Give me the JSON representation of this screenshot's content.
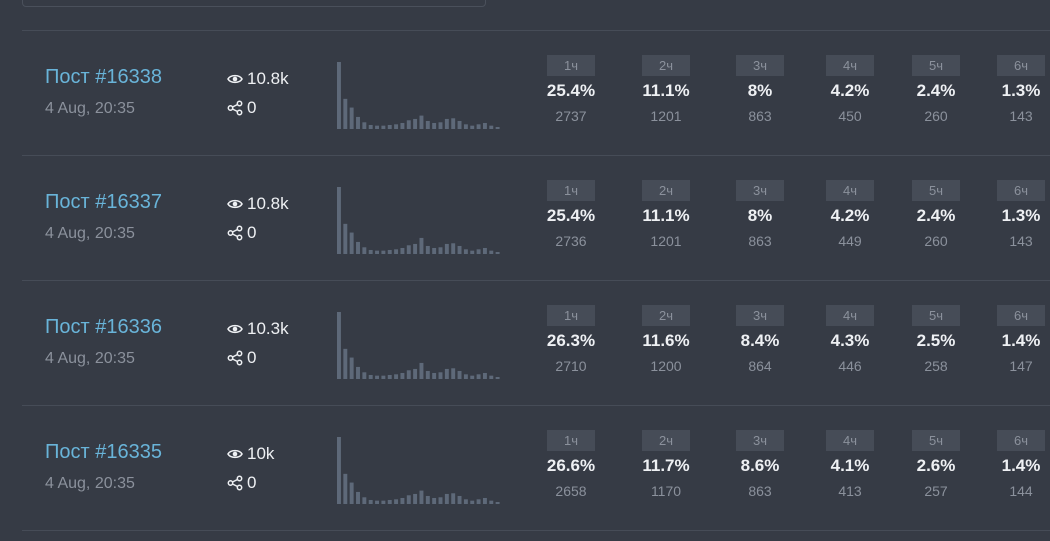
{
  "accent": "#69b4d9",
  "bar_color": "#5e6979",
  "posts": [
    {
      "title": "Пост #16338",
      "date": "4 Aug, 20:35",
      "views": "10.8k",
      "shares": "0",
      "spark": [
        100,
        45,
        32,
        18,
        10,
        6,
        5,
        5,
        6,
        7,
        9,
        13,
        15,
        20,
        12,
        9,
        10,
        15,
        16,
        12,
        7,
        5,
        7,
        9,
        5,
        3
      ],
      "hours": [
        {
          "label": "1ч",
          "pct": "25.4%",
          "count": "2737"
        },
        {
          "label": "2ч",
          "pct": "11.1%",
          "count": "1201"
        },
        {
          "label": "3ч",
          "pct": "8%",
          "count": "863"
        },
        {
          "label": "4ч",
          "pct": "4.2%",
          "count": "450"
        },
        {
          "label": "5ч",
          "pct": "2.4%",
          "count": "260"
        },
        {
          "label": "6ч",
          "pct": "1.3%",
          "count": "143"
        }
      ]
    },
    {
      "title": "Пост #16337",
      "date": "4 Aug, 20:35",
      "views": "10.8k",
      "shares": "0",
      "spark": [
        100,
        45,
        32,
        18,
        10,
        6,
        5,
        5,
        6,
        7,
        9,
        13,
        15,
        24,
        12,
        9,
        10,
        15,
        16,
        12,
        7,
        5,
        7,
        9,
        5,
        3
      ],
      "hours": [
        {
          "label": "1ч",
          "pct": "25.4%",
          "count": "2736"
        },
        {
          "label": "2ч",
          "pct": "11.1%",
          "count": "1201"
        },
        {
          "label": "3ч",
          "pct": "8%",
          "count": "863"
        },
        {
          "label": "4ч",
          "pct": "4.2%",
          "count": "449"
        },
        {
          "label": "5ч",
          "pct": "2.4%",
          "count": "260"
        },
        {
          "label": "6ч",
          "pct": "1.3%",
          "count": "143"
        }
      ]
    },
    {
      "title": "Пост #16336",
      "date": "4 Aug, 20:35",
      "views": "10.3k",
      "shares": "0",
      "spark": [
        100,
        45,
        32,
        18,
        10,
        6,
        5,
        5,
        6,
        7,
        9,
        13,
        15,
        24,
        12,
        9,
        10,
        15,
        16,
        12,
        7,
        5,
        7,
        9,
        5,
        3
      ],
      "hours": [
        {
          "label": "1ч",
          "pct": "26.3%",
          "count": "2710"
        },
        {
          "label": "2ч",
          "pct": "11.6%",
          "count": "1200"
        },
        {
          "label": "3ч",
          "pct": "8.4%",
          "count": "864"
        },
        {
          "label": "4ч",
          "pct": "4.3%",
          "count": "446"
        },
        {
          "label": "5ч",
          "pct": "2.5%",
          "count": "258"
        },
        {
          "label": "6ч",
          "pct": "1.4%",
          "count": "147"
        }
      ]
    },
    {
      "title": "Пост #16335",
      "date": "4 Aug, 20:35",
      "views": "10k",
      "shares": "0",
      "spark": [
        100,
        45,
        32,
        18,
        10,
        6,
        5,
        5,
        6,
        7,
        9,
        13,
        15,
        20,
        12,
        9,
        10,
        15,
        16,
        12,
        7,
        5,
        7,
        9,
        5,
        3
      ],
      "hours": [
        {
          "label": "1ч",
          "pct": "26.6%",
          "count": "2658"
        },
        {
          "label": "2ч",
          "pct": "11.7%",
          "count": "1170"
        },
        {
          "label": "3ч",
          "pct": "8.6%",
          "count": "863"
        },
        {
          "label": "4ч",
          "pct": "4.1%",
          "count": "413"
        },
        {
          "label": "5ч",
          "pct": "2.6%",
          "count": "257"
        },
        {
          "label": "6ч",
          "pct": "1.4%",
          "count": "144"
        }
      ]
    }
  ]
}
